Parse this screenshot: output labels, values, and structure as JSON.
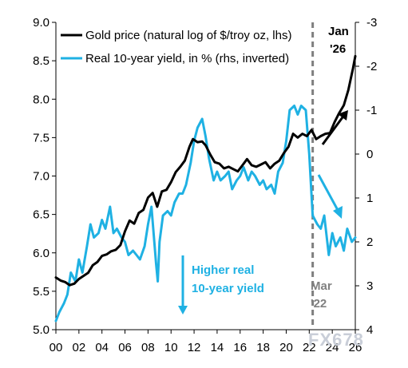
{
  "chart_data": {
    "type": "line",
    "x_ticks": [
      "00",
      "02",
      "04",
      "06",
      "08",
      "10",
      "12",
      "14",
      "16",
      "18",
      "20",
      "22",
      "24",
      "26"
    ],
    "left_axis": {
      "ylim": [
        5.0,
        9.0
      ],
      "ticks": [
        "5.0",
        "5.5",
        "6.0",
        "6.5",
        "7.0",
        "7.5",
        "8.0",
        "8.5",
        "9.0"
      ]
    },
    "right_axis": {
      "inverted": true,
      "ylim": [
        4,
        -3
      ],
      "ticks": [
        "-3",
        "-2",
        "-1",
        "0",
        "1",
        "2",
        "3",
        "4"
      ]
    },
    "series": [
      {
        "name": "Gold price (natural log of $/troy oz, lhs)",
        "color": "#000000",
        "axis": "left",
        "x": [
          2000.0,
          2000.4,
          2000.8,
          2001.2,
          2001.6,
          2002.0,
          2002.4,
          2002.8,
          2003.2,
          2003.6,
          2004.0,
          2004.4,
          2004.8,
          2005.2,
          2005.6,
          2006.0,
          2006.4,
          2006.8,
          2007.2,
          2007.6,
          2008.0,
          2008.4,
          2008.8,
          2009.2,
          2009.6,
          2010.0,
          2010.4,
          2010.8,
          2011.2,
          2011.6,
          2011.9,
          2012.3,
          2012.7,
          2013.0,
          2013.4,
          2013.8,
          2014.2,
          2014.6,
          2015.0,
          2015.4,
          2015.8,
          2016.2,
          2016.6,
          2017.0,
          2017.4,
          2017.8,
          2018.2,
          2018.6,
          2019.0,
          2019.4,
          2019.8,
          2020.2,
          2020.6,
          2021.0,
          2021.4,
          2021.8,
          2022.2,
          2022.6,
          2023.0,
          2023.4,
          2023.8,
          2024.2,
          2024.6,
          2025.0,
          2025.4,
          2025.8,
          2026.0
        ],
        "values": [
          5.68,
          5.64,
          5.62,
          5.58,
          5.6,
          5.66,
          5.7,
          5.74,
          5.84,
          5.88,
          5.96,
          5.98,
          6.02,
          6.04,
          6.1,
          6.28,
          6.42,
          6.38,
          6.52,
          6.56,
          6.72,
          6.78,
          6.6,
          6.8,
          6.82,
          6.92,
          7.05,
          7.12,
          7.2,
          7.38,
          7.48,
          7.44,
          7.45,
          7.4,
          7.28,
          7.18,
          7.16,
          7.1,
          7.12,
          7.09,
          7.06,
          7.14,
          7.22,
          7.14,
          7.12,
          7.15,
          7.18,
          7.1,
          7.16,
          7.2,
          7.3,
          7.38,
          7.55,
          7.5,
          7.55,
          7.52,
          7.6,
          7.48,
          7.52,
          7.55,
          7.56,
          7.7,
          7.82,
          7.92,
          8.12,
          8.4,
          8.56
        ]
      },
      {
        "name": "Real 10-year yield, in % (rhs, inverted)",
        "color": "#1fb1e3",
        "axis": "right",
        "x": [
          2000.0,
          2000.3,
          2000.7,
          2001.0,
          2001.3,
          2001.7,
          2002.0,
          2002.3,
          2002.7,
          2003.0,
          2003.3,
          2003.7,
          2004.0,
          2004.3,
          2004.7,
          2005.0,
          2005.3,
          2005.7,
          2006.0,
          2006.3,
          2006.7,
          2007.0,
          2007.3,
          2007.7,
          2008.0,
          2008.3,
          2008.7,
          2008.85,
          2009.0,
          2009.3,
          2009.7,
          2010.0,
          2010.3,
          2010.7,
          2011.0,
          2011.3,
          2011.7,
          2012.0,
          2012.3,
          2012.7,
          2013.0,
          2013.3,
          2013.7,
          2014.0,
          2014.3,
          2014.7,
          2015.0,
          2015.3,
          2015.7,
          2016.0,
          2016.3,
          2016.7,
          2017.0,
          2017.3,
          2017.7,
          2018.0,
          2018.3,
          2018.7,
          2019.0,
          2019.3,
          2019.7,
          2020.0,
          2020.3,
          2020.7,
          2021.0,
          2021.3,
          2021.7,
          2022.0,
          2022.3,
          2022.7,
          2023.0,
          2023.3,
          2023.7,
          2024.0,
          2024.3,
          2024.7,
          2025.0,
          2025.3,
          2025.7,
          2026.0
        ],
        "values": [
          3.8,
          3.6,
          3.4,
          3.2,
          2.7,
          2.9,
          2.4,
          2.7,
          2.1,
          1.6,
          1.9,
          1.8,
          1.5,
          1.7,
          1.2,
          1.8,
          1.7,
          1.9,
          2.0,
          2.3,
          2.2,
          2.3,
          2.4,
          2.1,
          1.6,
          1.2,
          2.5,
          2.9,
          2.0,
          1.4,
          1.3,
          1.4,
          1.1,
          0.9,
          0.9,
          0.7,
          0.2,
          -0.3,
          -0.6,
          -0.8,
          -0.4,
          0.1,
          0.6,
          0.4,
          0.6,
          0.5,
          0.4,
          0.8,
          0.6,
          0.5,
          0.3,
          0.6,
          0.4,
          0.5,
          0.7,
          0.6,
          0.8,
          0.7,
          0.9,
          0.4,
          0.2,
          -0.3,
          -1.0,
          -1.1,
          -0.9,
          -1.1,
          -1.0,
          0.0,
          1.4,
          1.6,
          1.7,
          1.4,
          2.3,
          1.8,
          2.1,
          1.9,
          2.2,
          1.7,
          2.0,
          1.9
        ]
      }
    ]
  },
  "annotations": {
    "higher_yield_line1": "Higher real",
    "higher_yield_line2": "10-year yield",
    "mar_line1": "Mar",
    "mar_line2": "'22",
    "jan_line1": "Jan",
    "jan_line2": "'26",
    "vline_year": 2022.3,
    "higher_yield_color": "#1fb1e3",
    "mar_color": "#808080"
  },
  "watermark": "FX678"
}
